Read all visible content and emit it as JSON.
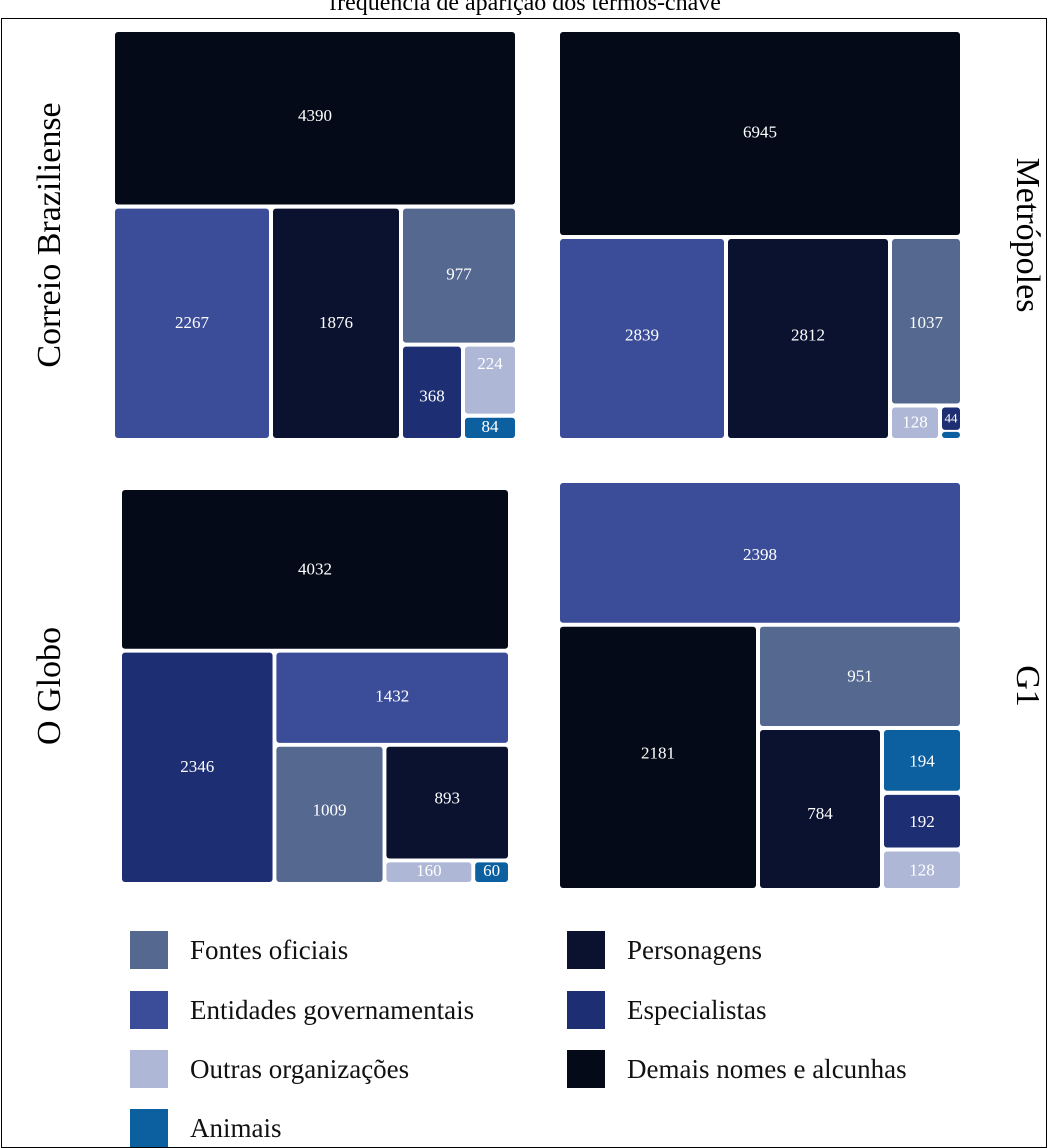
{
  "title": "frequência de aparição dos termos-chave",
  "categories": [
    {
      "key": "fontes",
      "label": "Fontes oficiais",
      "color": "#556890"
    },
    {
      "key": "entidades",
      "label": "Entidades governamentais",
      "color": "#3b4d98"
    },
    {
      "key": "outras",
      "label": "Outras organizações",
      "color": "#aeb8d6"
    },
    {
      "key": "animais",
      "label": "Animais",
      "color": "#0d60a0"
    },
    {
      "key": "personagens",
      "label": "Personagens",
      "color": "#0a1230"
    },
    {
      "key": "especialistas",
      "label": "Especialistas",
      "color": "#1e2e72"
    },
    {
      "key": "demais",
      "label": "Demais nomes e alcunhas",
      "color": "#050a18"
    }
  ],
  "chart_data": [
    {
      "type": "treemap",
      "label": "Correio Braziliense",
      "values": [
        {
          "category": "Demais nomes e alcunhas",
          "value": 4390
        },
        {
          "category": "Entidades governamentais",
          "value": 2267
        },
        {
          "category": "Personagens",
          "value": 1876
        },
        {
          "category": "Fontes oficiais",
          "value": 977
        },
        {
          "category": "Especialistas",
          "value": 368
        },
        {
          "category": "Outras organizações",
          "value": 224
        },
        {
          "category": "Animais",
          "value": 84
        }
      ]
    },
    {
      "type": "treemap",
      "label": "Metrópoles",
      "values": [
        {
          "category": "Demais nomes e alcunhas",
          "value": 6945
        },
        {
          "category": "Entidades governamentais",
          "value": 2839
        },
        {
          "category": "Personagens",
          "value": 2812
        },
        {
          "category": "Fontes oficiais",
          "value": 1037
        },
        {
          "category": "Outras organizações",
          "value": 128
        },
        {
          "category": "Especialistas",
          "value": 44
        },
        {
          "category": "Animais",
          "value": null
        }
      ]
    },
    {
      "type": "treemap",
      "label": "O Globo",
      "values": [
        {
          "category": "Demais nomes e alcunhas",
          "value": 4032
        },
        {
          "category": "Especialistas",
          "value": 2346
        },
        {
          "category": "Entidades governamentais",
          "value": 1432
        },
        {
          "category": "Fontes oficiais",
          "value": 1009
        },
        {
          "category": "Personagens",
          "value": 893
        },
        {
          "category": "Outras organizações",
          "value": 160
        },
        {
          "category": "Animais",
          "value": 60
        }
      ]
    },
    {
      "type": "treemap",
      "label": "G1",
      "values": [
        {
          "category": "Entidades governamentais",
          "value": 2398
        },
        {
          "category": "Demais nomes e alcunhas",
          "value": 2181
        },
        {
          "category": "Fontes oficiais",
          "value": 951
        },
        {
          "category": "Personagens",
          "value": 784
        },
        {
          "category": "Animais",
          "value": 194
        },
        {
          "category": "Especialistas",
          "value": 192
        },
        {
          "category": "Outras organizações",
          "value": 128
        }
      ]
    }
  ]
}
